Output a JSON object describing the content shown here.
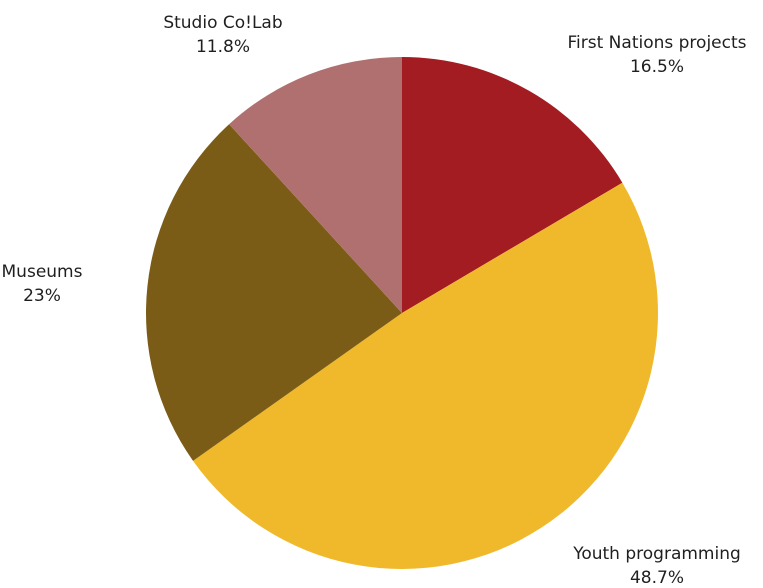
{
  "chart_data": {
    "type": "pie",
    "title": "",
    "start_angle_deg": 0,
    "direction": "clockwise",
    "slices": [
      {
        "label": "First Nations projects",
        "value": 16.5,
        "display": "16.5%",
        "color": "#a31c21"
      },
      {
        "label": "Youth programming",
        "value": 48.7,
        "display": "48.7%",
        "color": "#f0b92b"
      },
      {
        "label": "Museums",
        "value": 23,
        "display": "23%",
        "color": "#7b5c17"
      },
      {
        "label": "Studio Co!Lab",
        "value": 11.8,
        "display": "11.8%",
        "color": "#b07070"
      }
    ]
  }
}
